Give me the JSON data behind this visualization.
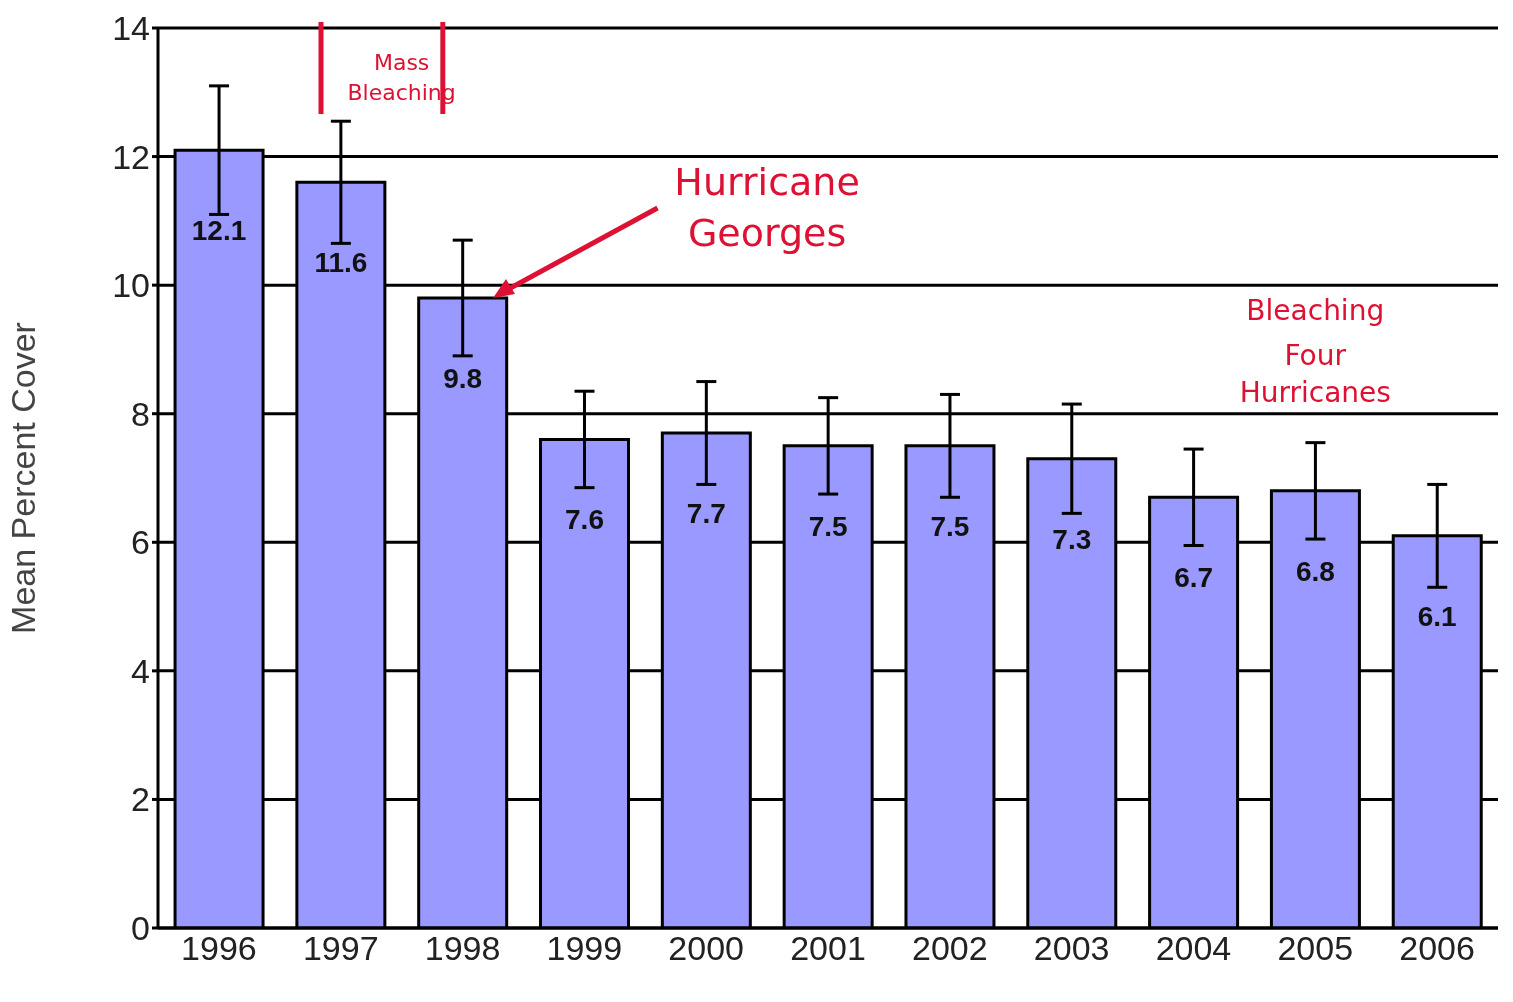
{
  "chart_data": {
    "type": "bar",
    "ylabel": "Mean Percent Cover",
    "categories": [
      "1996",
      "1997",
      "1998",
      "1999",
      "2000",
      "2001",
      "2002",
      "2003",
      "2004",
      "2005",
      "2006"
    ],
    "values": [
      12.1,
      11.6,
      9.8,
      7.6,
      7.7,
      7.5,
      7.5,
      7.3,
      6.7,
      6.8,
      6.1
    ],
    "errors": [
      1.0,
      0.95,
      0.9,
      0.75,
      0.8,
      0.75,
      0.8,
      0.85,
      0.75,
      0.75,
      0.8
    ],
    "color": "#9999ff",
    "ylim": [
      0,
      14
    ],
    "yticks": [
      0,
      2,
      4,
      6,
      8,
      10,
      12,
      14
    ],
    "grid": "y",
    "legend": false,
    "data_labels": true,
    "annotations": [
      "Mass Bleaching",
      "Hurricane Georges",
      "Bleaching",
      "Four Hurricanes"
    ]
  }
}
